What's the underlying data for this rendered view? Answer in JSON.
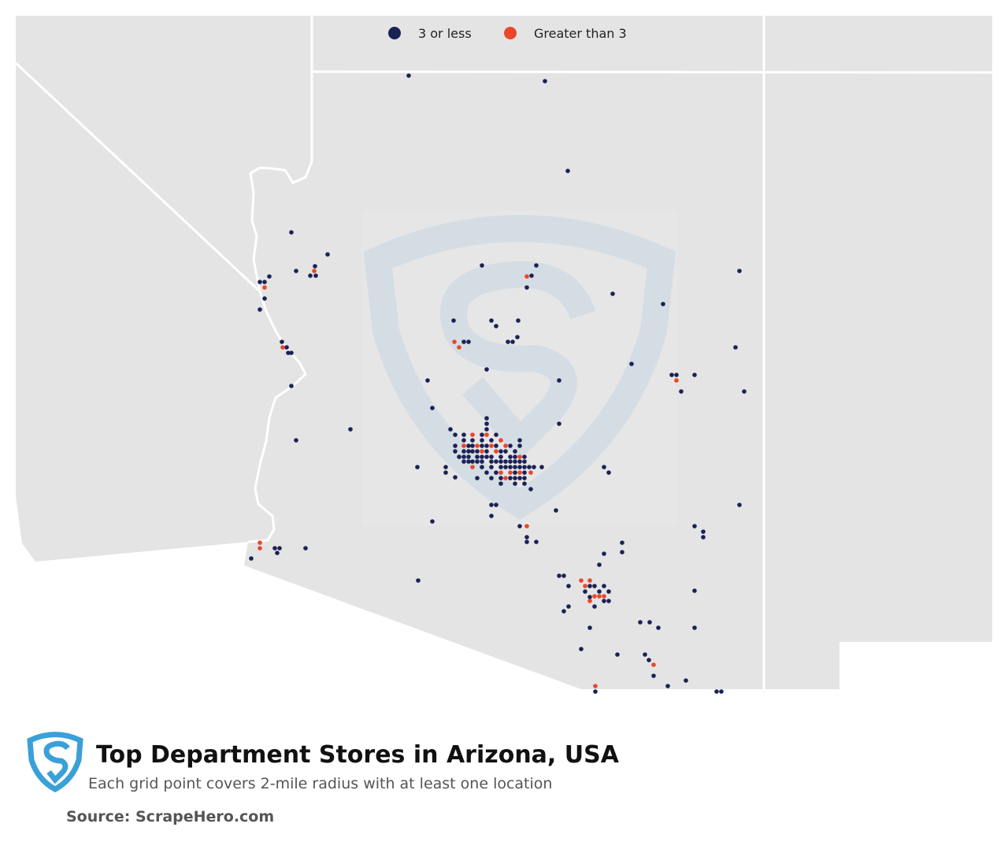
{
  "legend": {
    "items": [
      {
        "label": "3 or less",
        "color": "#1b2157"
      },
      {
        "label": "Greater than 3",
        "color": "#e8472a"
      }
    ]
  },
  "title": "Top Department Stores in Arizona, USA",
  "subtitle": "Each grid point covers 2-mile radius with at least one location",
  "source": "Source: ScrapeHero.com"
}
